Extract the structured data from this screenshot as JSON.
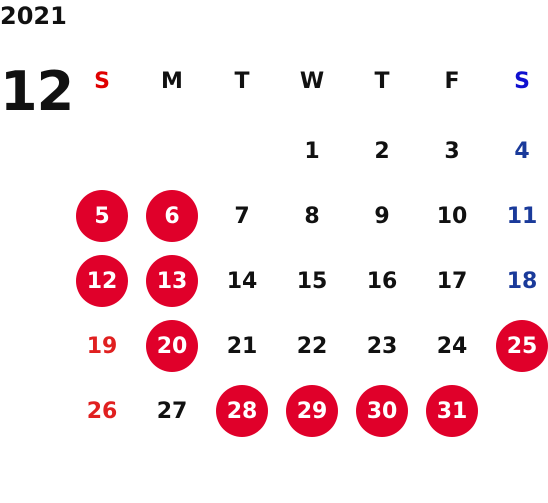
{
  "calendar": {
    "year": "2021",
    "month": "12",
    "weekdays": [
      "S",
      "M",
      "T",
      "W",
      "T",
      "F",
      "S"
    ],
    "weeks": [
      [
        {
          "day": "",
          "type": "empty"
        },
        {
          "day": "",
          "type": "empty"
        },
        {
          "day": "",
          "type": "empty"
        },
        {
          "day": "1",
          "type": "normal"
        },
        {
          "day": "2",
          "type": "normal"
        },
        {
          "day": "3",
          "type": "normal"
        },
        {
          "day": "4",
          "type": "saturday"
        }
      ],
      [
        {
          "day": "5",
          "type": "circled"
        },
        {
          "day": "6",
          "type": "circled"
        },
        {
          "day": "7",
          "type": "normal"
        },
        {
          "day": "8",
          "type": "normal"
        },
        {
          "day": "9",
          "type": "normal"
        },
        {
          "day": "10",
          "type": "normal"
        },
        {
          "day": "11",
          "type": "saturday"
        }
      ],
      [
        {
          "day": "12",
          "type": "circled"
        },
        {
          "day": "13",
          "type": "circled"
        },
        {
          "day": "14",
          "type": "normal"
        },
        {
          "day": "15",
          "type": "normal"
        },
        {
          "day": "16",
          "type": "normal"
        },
        {
          "day": "17",
          "type": "normal"
        },
        {
          "day": "18",
          "type": "saturday"
        }
      ],
      [
        {
          "day": "19",
          "type": "sunday"
        },
        {
          "day": "20",
          "type": "circled"
        },
        {
          "day": "21",
          "type": "normal"
        },
        {
          "day": "22",
          "type": "normal"
        },
        {
          "day": "23",
          "type": "normal"
        },
        {
          "day": "24",
          "type": "normal"
        },
        {
          "day": "25",
          "type": "circled"
        }
      ],
      [
        {
          "day": "26",
          "type": "sunday"
        },
        {
          "day": "27",
          "type": "normal"
        },
        {
          "day": "28",
          "type": "circled"
        },
        {
          "day": "29",
          "type": "circled"
        },
        {
          "day": "30",
          "type": "circled"
        },
        {
          "day": "31",
          "type": "circled"
        },
        {
          "day": "",
          "type": "empty"
        }
      ]
    ]
  },
  "colors": {
    "holiday_circle": "#e0002a",
    "sunday_text": "#e02020",
    "saturday_text": "#1a3a9a",
    "header_sunday": "#e00000",
    "header_saturday": "#1010d0",
    "normal_text": "#111111"
  }
}
